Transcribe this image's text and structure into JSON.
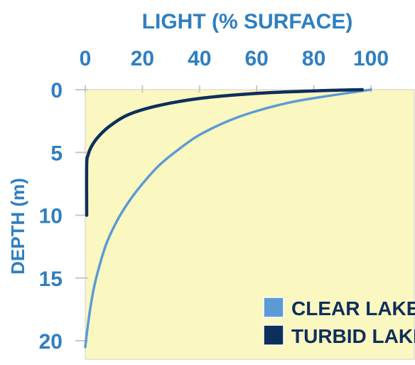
{
  "colors": {
    "plot_background": "#fbf7c0",
    "axis_text": "#2f7fc0",
    "clear_lake": "#5b9bd5",
    "turbid_lake": "#0d2f5c",
    "tick_and_grid": "#c8c8c8"
  },
  "chart_data": {
    "type": "line",
    "title": "",
    "xlabel": "LIGHT (% SURFACE)",
    "ylabel": "DEPTH (m)",
    "x_axis_position": "top",
    "y_axis_inverted": true,
    "xlim": [
      0,
      100
    ],
    "ylim": [
      0,
      21
    ],
    "xticks": [
      0,
      20,
      40,
      60,
      80,
      100
    ],
    "yticks": [
      0,
      5,
      10,
      15,
      20
    ],
    "grid": false,
    "legend_position": "bottom-right",
    "series": [
      {
        "name": "CLEAR LAKE",
        "points": [
          {
            "light": 100,
            "depth": 0
          },
          {
            "light": 85,
            "depth": 0.5
          },
          {
            "light": 72,
            "depth": 1
          },
          {
            "light": 60,
            "depth": 1.7
          },
          {
            "light": 50,
            "depth": 2.5
          },
          {
            "light": 40,
            "depth": 3.6
          },
          {
            "light": 33,
            "depth": 4.7
          },
          {
            "light": 26,
            "depth": 6
          },
          {
            "light": 20,
            "depth": 7.5
          },
          {
            "light": 15,
            "depth": 9
          },
          {
            "light": 11,
            "depth": 10.5
          },
          {
            "light": 7.5,
            "depth": 12.2
          },
          {
            "light": 5,
            "depth": 14
          },
          {
            "light": 3,
            "depth": 15.8
          },
          {
            "light": 1.5,
            "depth": 17.8
          },
          {
            "light": 0.5,
            "depth": 19.5
          },
          {
            "light": 0,
            "depth": 20.5
          }
        ]
      },
      {
        "name": "TURBID LAKE",
        "points": [
          {
            "light": 97,
            "depth": 0
          },
          {
            "light": 80,
            "depth": 0.1
          },
          {
            "light": 60,
            "depth": 0.3
          },
          {
            "light": 40,
            "depth": 0.7
          },
          {
            "light": 25,
            "depth": 1.3
          },
          {
            "light": 15,
            "depth": 2
          },
          {
            "light": 8,
            "depth": 3
          },
          {
            "light": 4,
            "depth": 3.9
          },
          {
            "light": 2,
            "depth": 4.6
          },
          {
            "light": 1,
            "depth": 5.2
          },
          {
            "light": 0.5,
            "depth": 6
          },
          {
            "light": 0.5,
            "depth": 10
          }
        ]
      }
    ]
  }
}
